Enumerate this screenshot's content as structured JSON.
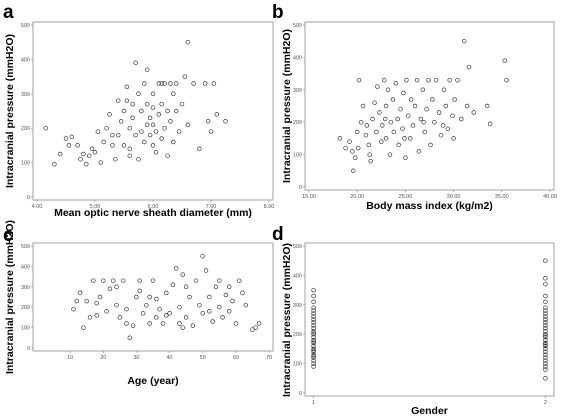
{
  "chart_data": [
    {
      "panel": "a",
      "type": "scatter",
      "xlabel": "Mean optic nerve sheath diameter (mm)",
      "ylabel": "Intracranial pressure (mmH2O)",
      "xlim": [
        4.0,
        8.0
      ],
      "ylim": [
        0,
        500
      ],
      "xticks": [
        "4.00",
        "5.00",
        "6.00",
        "7.00",
        "8.00"
      ],
      "yticks": [
        "0",
        "100",
        "200",
        "300",
        "400",
        "500"
      ],
      "points": [
        [
          4.15,
          200
        ],
        [
          4.3,
          95
        ],
        [
          4.4,
          125
        ],
        [
          4.5,
          170
        ],
        [
          4.55,
          150
        ],
        [
          4.6,
          175
        ],
        [
          4.7,
          150
        ],
        [
          4.75,
          110
        ],
        [
          4.8,
          125
        ],
        [
          4.85,
          95
        ],
        [
          4.9,
          120
        ],
        [
          4.95,
          140
        ],
        [
          5.0,
          130
        ],
        [
          5.05,
          190
        ],
        [
          5.1,
          100
        ],
        [
          5.15,
          160
        ],
        [
          5.2,
          200
        ],
        [
          5.25,
          240
        ],
        [
          5.3,
          180
        ],
        [
          5.35,
          110
        ],
        [
          5.4,
          180
        ],
        [
          5.45,
          220
        ],
        [
          5.5,
          150
        ],
        [
          5.5,
          250
        ],
        [
          5.55,
          280
        ],
        [
          5.55,
          320
        ],
        [
          5.6,
          140
        ],
        [
          5.6,
          200
        ],
        [
          5.65,
          270
        ],
        [
          5.65,
          230
        ],
        [
          5.7,
          390
        ],
        [
          5.7,
          180
        ],
        [
          5.75,
          300
        ],
        [
          5.75,
          110
        ],
        [
          5.8,
          250
        ],
        [
          5.8,
          190
        ],
        [
          5.85,
          160
        ],
        [
          5.85,
          330
        ],
        [
          5.9,
          270
        ],
        [
          5.9,
          210
        ],
        [
          5.9,
          370
        ],
        [
          5.95,
          230
        ],
        [
          6.0,
          150
        ],
        [
          6.0,
          260
        ],
        [
          6.0,
          300
        ],
        [
          6.05,
          190
        ],
        [
          6.05,
          130
        ],
        [
          6.1,
          330
        ],
        [
          6.1,
          240
        ],
        [
          6.15,
          170
        ],
        [
          6.15,
          270
        ],
        [
          6.2,
          330
        ],
        [
          6.2,
          200
        ],
        [
          6.25,
          250
        ],
        [
          6.25,
          120
        ],
        [
          6.3,
          330
        ],
        [
          6.3,
          220
        ],
        [
          6.35,
          300
        ],
        [
          6.35,
          160
        ],
        [
          6.4,
          250
        ],
        [
          6.45,
          190
        ],
        [
          6.5,
          270
        ],
        [
          6.55,
          350
        ],
        [
          6.6,
          450
        ],
        [
          6.6,
          210
        ],
        [
          6.7,
          330
        ],
        [
          6.8,
          140
        ],
        [
          6.9,
          330
        ],
        [
          6.95,
          220
        ],
        [
          7.0,
          190
        ],
        [
          7.05,
          330
        ],
        [
          7.1,
          240
        ],
        [
          7.25,
          220
        ],
        [
          5.4,
          280
        ],
        [
          5.6,
          120
        ],
        [
          5.95,
          180
        ],
        [
          6.4,
          330
        ],
        [
          6.15,
          330
        ],
        [
          5.3,
          150
        ],
        [
          6.0,
          210
        ]
      ]
    },
    {
      "panel": "b",
      "type": "scatter",
      "xlabel": "Body mass index (kg/m2)",
      "ylabel": "Intracranial pressure (mmH2O)",
      "xlim": [
        15.0,
        40.0
      ],
      "ylim": [
        0,
        500
      ],
      "xticks": [
        "15.00",
        "20.00",
        "25.00",
        "30.00",
        "35.00",
        "40.00"
      ],
      "yticks": [
        "0",
        "100",
        "200",
        "300",
        "400",
        "500"
      ],
      "points": [
        [
          18.2,
          150
        ],
        [
          18.8,
          120
        ],
        [
          19.2,
          140
        ],
        [
          19.5,
          110
        ],
        [
          19.6,
          50
        ],
        [
          19.8,
          90
        ],
        [
          20.0,
          170
        ],
        [
          20.1,
          120
        ],
        [
          20.2,
          330
        ],
        [
          20.4,
          200
        ],
        [
          20.6,
          250
        ],
        [
          20.9,
          160
        ],
        [
          21.0,
          190
        ],
        [
          21.2,
          130
        ],
        [
          21.4,
          80
        ],
        [
          21.6,
          210
        ],
        [
          21.8,
          260
        ],
        [
          22.0,
          170
        ],
        [
          22.1,
          310
        ],
        [
          22.3,
          230
        ],
        [
          22.5,
          140
        ],
        [
          22.6,
          190
        ],
        [
          22.8,
          330
        ],
        [
          23.0,
          150
        ],
        [
          23.0,
          250
        ],
        [
          23.2,
          300
        ],
        [
          23.4,
          100
        ],
        [
          23.5,
          200
        ],
        [
          23.7,
          270
        ],
        [
          23.8,
          170
        ],
        [
          24.0,
          320
        ],
        [
          24.2,
          210
        ],
        [
          24.3,
          130
        ],
        [
          24.5,
          240
        ],
        [
          24.7,
          180
        ],
        [
          24.8,
          290
        ],
        [
          25.0,
          90
        ],
        [
          25.1,
          330
        ],
        [
          25.3,
          220
        ],
        [
          25.5,
          150
        ],
        [
          25.6,
          270
        ],
        [
          25.8,
          190
        ],
        [
          26.0,
          250
        ],
        [
          26.2,
          330
        ],
        [
          26.4,
          110
        ],
        [
          26.6,
          210
        ],
        [
          26.8,
          300
        ],
        [
          27.0,
          170
        ],
        [
          27.2,
          240
        ],
        [
          27.4,
          330
        ],
        [
          27.6,
          130
        ],
        [
          27.8,
          270
        ],
        [
          28.0,
          200
        ],
        [
          28.2,
          330
        ],
        [
          28.5,
          230
        ],
        [
          28.7,
          160
        ],
        [
          29.0,
          300
        ],
        [
          29.2,
          250
        ],
        [
          29.4,
          180
        ],
        [
          29.6,
          330
        ],
        [
          29.9,
          220
        ],
        [
          30.1,
          270
        ],
        [
          30.4,
          330
        ],
        [
          30.8,
          210
        ],
        [
          31.1,
          450
        ],
        [
          31.4,
          250
        ],
        [
          31.6,
          370
        ],
        [
          32.1,
          230
        ],
        [
          33.5,
          250
        ],
        [
          33.8,
          195
        ],
        [
          35.3,
          390
        ],
        [
          35.5,
          330
        ],
        [
          21.3,
          100
        ],
        [
          22.9,
          210
        ],
        [
          24.9,
          150
        ],
        [
          26.9,
          200
        ],
        [
          28.9,
          190
        ],
        [
          30.0,
          150
        ]
      ]
    },
    {
      "panel": "c",
      "type": "scatter",
      "xlabel": "Age (year)",
      "ylabel": "Intracranial pressure (mmH2O)",
      "xlim": [
        0,
        70
      ],
      "ylim": [
        0,
        500
      ],
      "xticks": [
        "10",
        "20",
        "30",
        "40",
        "50",
        "60",
        "70"
      ],
      "yticks": [
        "0",
        "100",
        "200",
        "300",
        "400",
        "500"
      ],
      "points": [
        [
          11,
          190
        ],
        [
          13,
          270
        ],
        [
          14,
          100
        ],
        [
          15,
          230
        ],
        [
          16,
          150
        ],
        [
          17,
          330
        ],
        [
          18,
          220
        ],
        [
          19,
          250
        ],
        [
          20,
          330
        ],
        [
          21,
          180
        ],
        [
          22,
          290
        ],
        [
          23,
          330
        ],
        [
          24,
          210
        ],
        [
          25,
          150
        ],
        [
          26,
          330
        ],
        [
          27,
          120
        ],
        [
          27,
          190
        ],
        [
          28,
          50
        ],
        [
          29,
          110
        ],
        [
          30,
          250
        ],
        [
          31,
          330
        ],
        [
          32,
          170
        ],
        [
          33,
          210
        ],
        [
          34,
          120
        ],
        [
          35,
          330
        ],
        [
          36,
          150
        ],
        [
          36,
          240
        ],
        [
          37,
          190
        ],
        [
          38,
          120
        ],
        [
          39,
          270
        ],
        [
          40,
          170
        ],
        [
          41,
          310
        ],
        [
          42,
          390
        ],
        [
          43,
          200
        ],
        [
          44,
          360
        ],
        [
          44,
          100
        ],
        [
          45,
          150
        ],
        [
          46,
          250
        ],
        [
          47,
          110
        ],
        [
          48,
          330
        ],
        [
          49,
          210
        ],
        [
          50,
          450
        ],
        [
          50,
          170
        ],
        [
          51,
          380
        ],
        [
          52,
          250
        ],
        [
          53,
          130
        ],
        [
          54,
          300
        ],
        [
          55,
          200
        ],
        [
          56,
          150
        ],
        [
          57,
          260
        ],
        [
          58,
          180
        ],
        [
          59,
          230
        ],
        [
          60,
          120
        ],
        [
          61,
          330
        ],
        [
          62,
          270
        ],
        [
          63,
          210
        ],
        [
          65,
          90
        ],
        [
          66,
          100
        ],
        [
          67,
          120
        ],
        [
          24,
          300
        ],
        [
          31,
          280
        ],
        [
          39,
          160
        ],
        [
          45,
          300
        ],
        [
          52,
          180
        ],
        [
          58,
          300
        ],
        [
          18,
          160
        ],
        [
          43,
          120
        ],
        [
          34,
          250
        ],
        [
          55,
          330
        ],
        [
          12,
          230
        ]
      ]
    },
    {
      "panel": "d",
      "type": "scatter",
      "xlabel": "Gender",
      "ylabel": "Intracranial pressure (mmH2O)",
      "xlim": [
        0.98,
        2.02
      ],
      "ylim": [
        0,
        500
      ],
      "xticks": [
        "1",
        "2"
      ],
      "yticks": [
        "0",
        "100",
        "200",
        "300",
        "400",
        "500"
      ],
      "points": [
        [
          1,
          350
        ],
        [
          1,
          330
        ],
        [
          1,
          310
        ],
        [
          1,
          290
        ],
        [
          1,
          270
        ],
        [
          1,
          250
        ],
        [
          1,
          240
        ],
        [
          1,
          230
        ],
        [
          1,
          220
        ],
        [
          1,
          210
        ],
        [
          1,
          200
        ],
        [
          1,
          190
        ],
        [
          1,
          180
        ],
        [
          1,
          170
        ],
        [
          1,
          160
        ],
        [
          1,
          150
        ],
        [
          1,
          140
        ],
        [
          1,
          130
        ],
        [
          1,
          120
        ],
        [
          1,
          110
        ],
        [
          1,
          100
        ],
        [
          1,
          90
        ],
        [
          1,
          260
        ],
        [
          1,
          280
        ],
        [
          1,
          205
        ],
        [
          1,
          175
        ],
        [
          1,
          145
        ],
        [
          1,
          125
        ],
        [
          2,
          450
        ],
        [
          2,
          390
        ],
        [
          2,
          370
        ],
        [
          2,
          330
        ],
        [
          2,
          310
        ],
        [
          2,
          290
        ],
        [
          2,
          270
        ],
        [
          2,
          250
        ],
        [
          2,
          240
        ],
        [
          2,
          230
        ],
        [
          2,
          220
        ],
        [
          2,
          210
        ],
        [
          2,
          200
        ],
        [
          2,
          190
        ],
        [
          2,
          180
        ],
        [
          2,
          170
        ],
        [
          2,
          160
        ],
        [
          2,
          150
        ],
        [
          2,
          140
        ],
        [
          2,
          130
        ],
        [
          2,
          120
        ],
        [
          2,
          110
        ],
        [
          2,
          100
        ],
        [
          2,
          90
        ],
        [
          2,
          80
        ],
        [
          2,
          50
        ],
        [
          2,
          260
        ],
        [
          2,
          280
        ],
        [
          2,
          195
        ],
        [
          2,
          165
        ]
      ]
    }
  ]
}
